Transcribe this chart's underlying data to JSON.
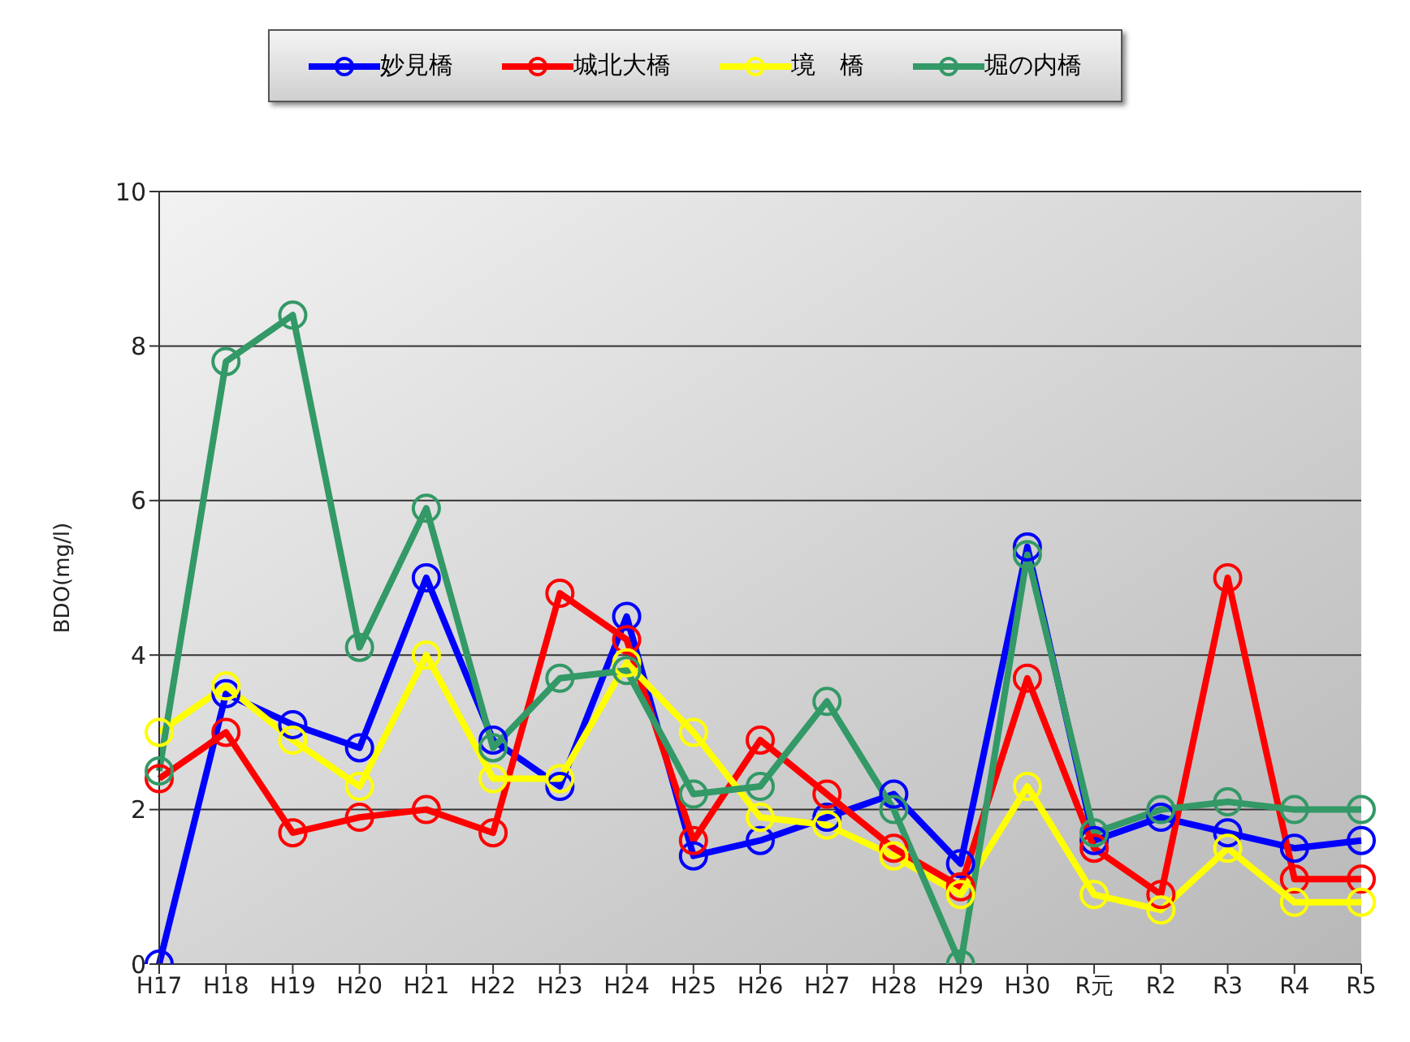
{
  "chart_data": {
    "type": "line",
    "ylabel": "BDO(mg/l)",
    "categories": [
      "H17",
      "H18",
      "H19",
      "H20",
      "H21",
      "H22",
      "H23",
      "H24",
      "H25",
      "H26",
      "H27",
      "H28",
      "H29",
      "H30",
      "R元",
      "R2",
      "R3",
      "R4",
      "R5"
    ],
    "series": [
      {
        "name": "妙見橋",
        "color": "#0000ff",
        "values": [
          0,
          3.5,
          3.1,
          2.8,
          5.0,
          2.9,
          2.3,
          4.5,
          1.4,
          1.6,
          1.9,
          2.2,
          1.3,
          5.4,
          1.6,
          1.9,
          1.7,
          1.5,
          1.6
        ]
      },
      {
        "name": "城北大橋",
        "color": "#ff0000",
        "values": [
          2.4,
          3.0,
          1.7,
          1.9,
          2.0,
          1.7,
          4.8,
          4.2,
          1.6,
          2.9,
          2.2,
          1.5,
          1.0,
          3.7,
          1.5,
          0.9,
          5.0,
          1.1,
          1.1
        ]
      },
      {
        "name": "境　橋",
        "color": "#ffff00",
        "values": [
          3.0,
          3.6,
          2.9,
          2.3,
          4.0,
          2.4,
          2.4,
          3.9,
          3.0,
          1.9,
          1.8,
          1.4,
          0.9,
          2.3,
          0.9,
          0.7,
          1.5,
          0.8,
          0.8
        ]
      },
      {
        "name": "堀の内橋",
        "color": "#339966",
        "values": [
          2.5,
          7.8,
          8.4,
          4.1,
          5.9,
          2.8,
          3.7,
          3.8,
          2.2,
          2.3,
          3.4,
          2.0,
          0,
          5.3,
          1.7,
          2.0,
          2.1,
          2.0,
          2.0
        ]
      }
    ],
    "ylim": [
      0,
      10
    ],
    "yticks": [
      0,
      2,
      4,
      6,
      8,
      10
    ],
    "grid": "y",
    "legend": "top",
    "marker": "circle",
    "line_style": "solid"
  }
}
